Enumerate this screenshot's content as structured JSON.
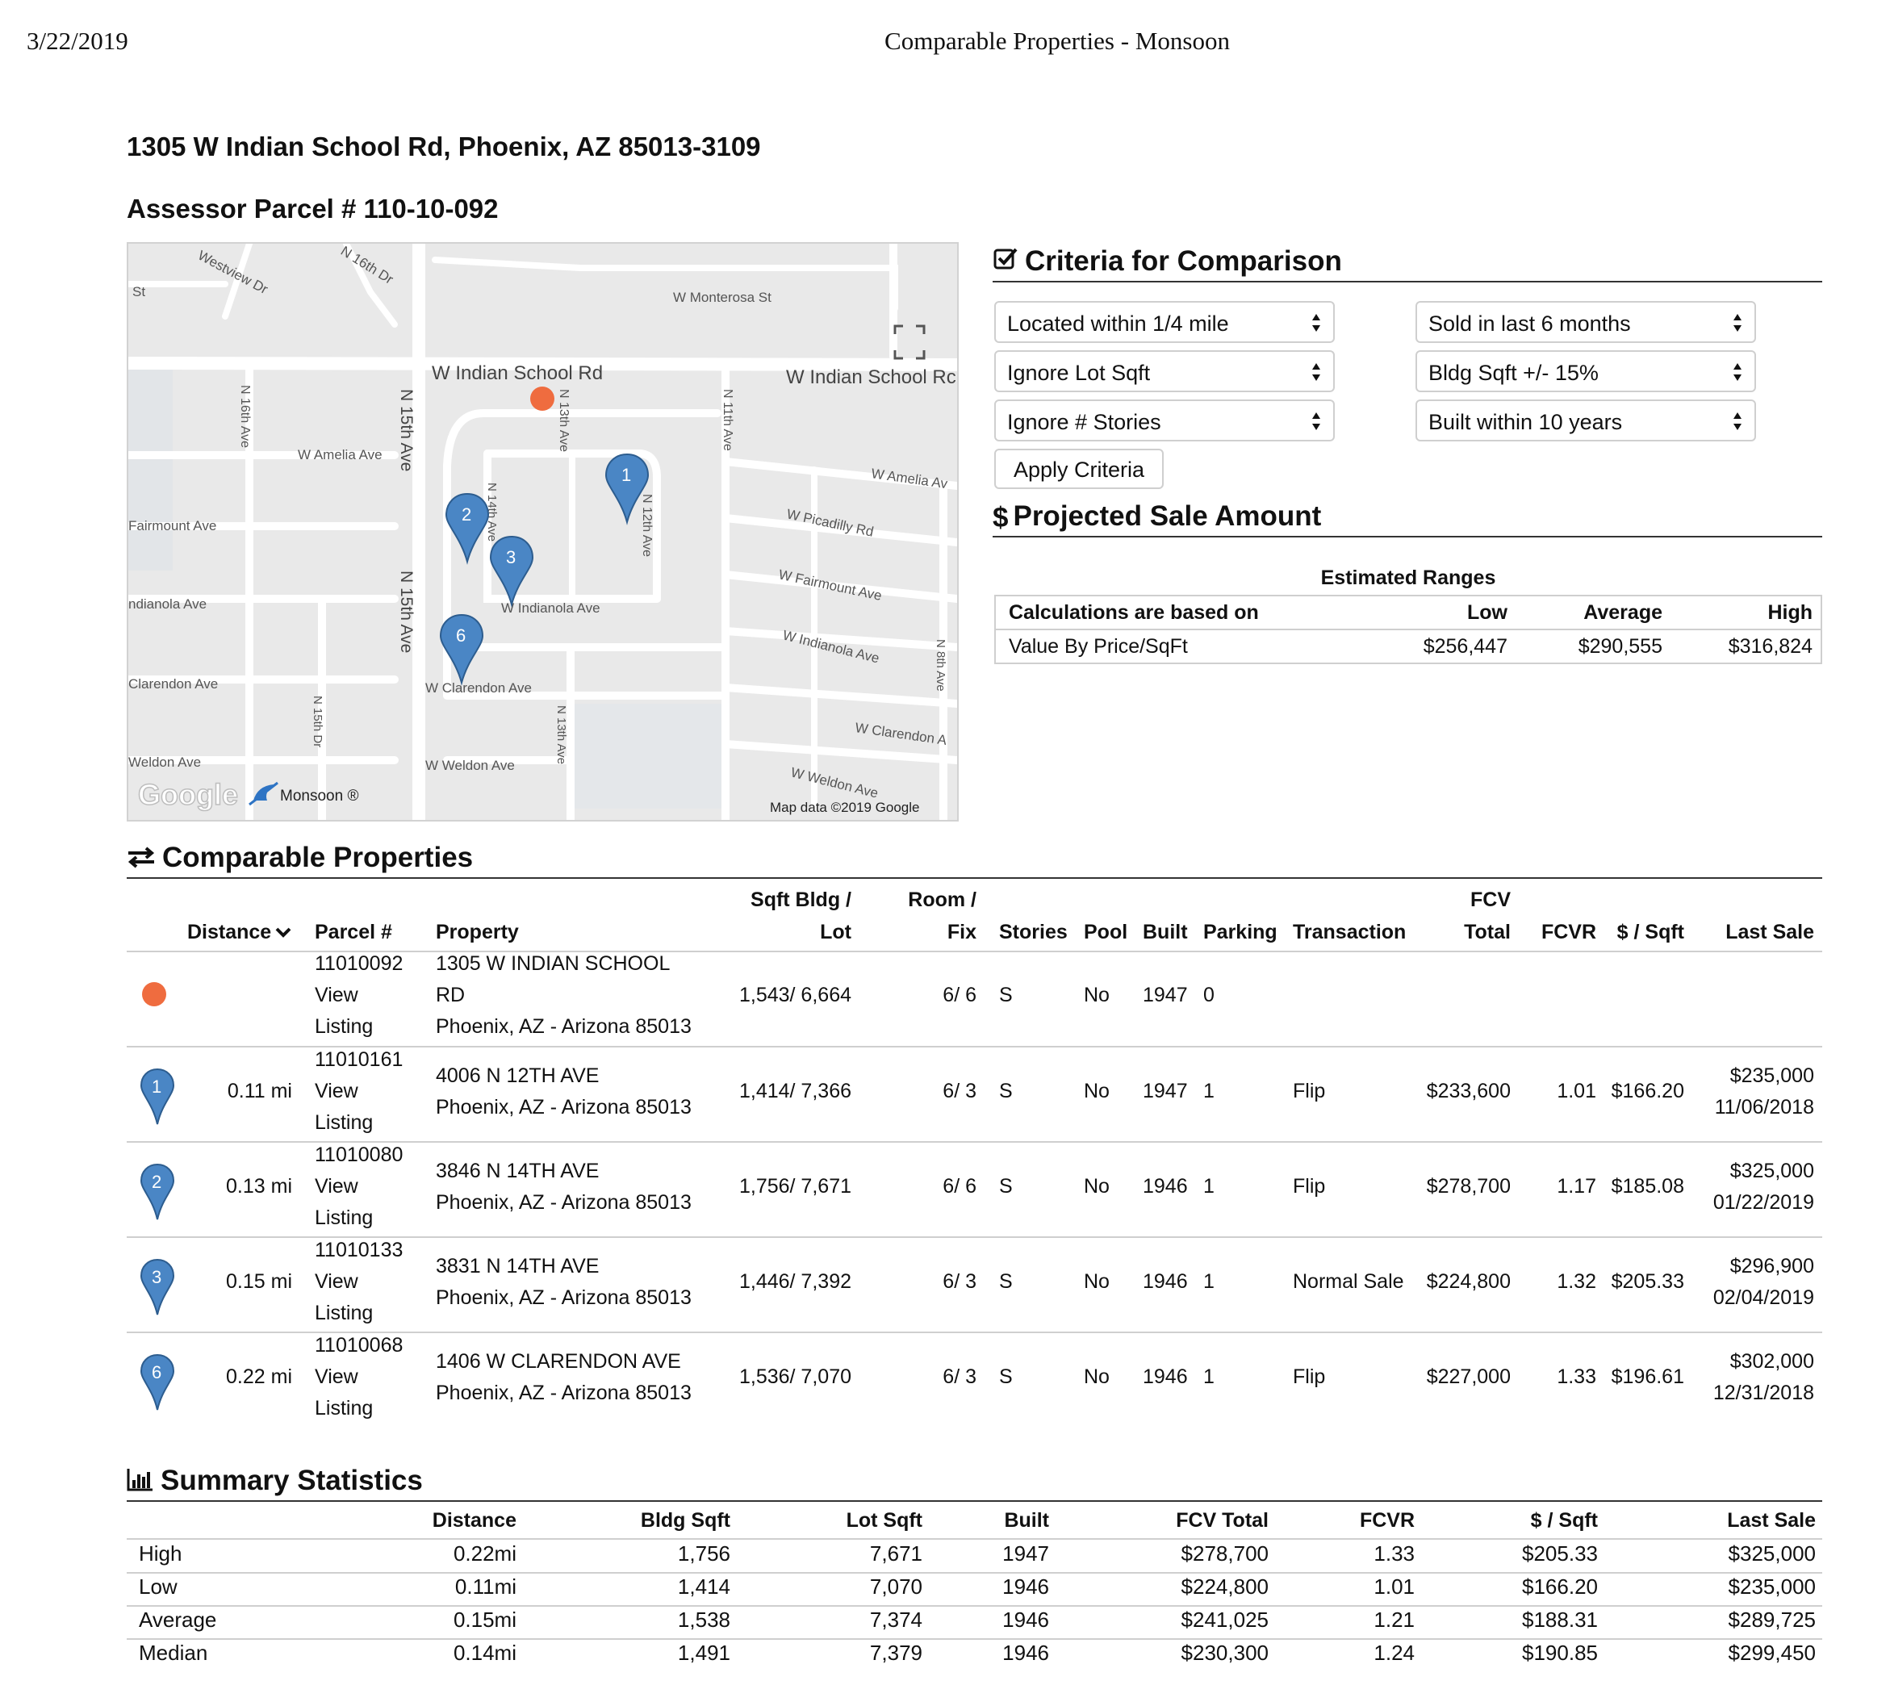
{
  "header": {
    "date": "3/22/2019",
    "title": "Comparable Properties - Monsoon"
  },
  "address": "1305 W Indian School Rd, Phoenix, AZ 85013-3109",
  "parcel_heading": "Assessor Parcel # 110-10-092",
  "map": {
    "labels": {
      "westview": "Westview Dr",
      "st": "St",
      "n16thdr": "N 16th Dr",
      "monterosa": "W Monterosa St",
      "indian_school": "W Indian School Rd",
      "indian_school_r": "W Indian School Rc",
      "n16th": "N 16th Ave",
      "amelia": "W Amelia Ave",
      "n15th": "N 15th Ave",
      "n13th": "N 13th Ave",
      "n11th": "N 11th Ave",
      "amelia_r": "W Amelia Av",
      "fairmount": "Fairmount Ave",
      "n14th": "N 14th Ave",
      "n12th": "N 12th Ave",
      "picadilly": "W Picadilly Rd",
      "fairmount_r": "W Fairmount Ave",
      "indianola_l": "ndianola Ave",
      "indianola": "W Indianola Ave",
      "indianola_r": "W Indianola Ave",
      "n8th": "N 8th Ave",
      "clarendon_l": "Clarendon Ave",
      "clarendon": "W Clarendon Ave",
      "clarendon_r": "W Clarendon A",
      "n15thdr": "N 15th Dr",
      "weldon_l": "Weldon Ave",
      "weldon": "W Weldon Ave",
      "weldon_r": "W Weldon Ave",
      "google": "Google",
      "monsoon": "Monsoon ®",
      "mapdata": "Map data ©2019 Google"
    },
    "pins": [
      "1",
      "2",
      "3",
      "6"
    ]
  },
  "criteria": {
    "heading": "Criteria for Comparison",
    "location": "Located within 1/4 mile",
    "sold": "Sold in last 6 months",
    "lot": "Ignore Lot Sqft",
    "bldg": "Bldg Sqft +/- 15%",
    "stories": "Ignore # Stories",
    "built": "Built within 10 years",
    "apply": "Apply Criteria"
  },
  "projection": {
    "heading": "Projected Sale Amount",
    "caption": "Estimated Ranges",
    "col_basis": "Calculations are based on",
    "col_low": "Low",
    "col_avg": "Average",
    "col_high": "High",
    "basis": "Value By Price/SqFt",
    "low": "$256,447",
    "avg": "$290,555",
    "high": "$316,824"
  },
  "comparables": {
    "heading": "Comparable Properties",
    "headers": {
      "distance": "Distance",
      "parcel": "Parcel #",
      "property": "Property",
      "sqft1": "Sqft Bldg /",
      "sqft2": "Lot",
      "room1": "Room /",
      "room2": "Fix",
      "stories": "Stories",
      "pool": "Pool",
      "built": "Built",
      "parking": "Parking",
      "transaction": "Transaction",
      "fcv1": "FCV",
      "fcv2": "Total",
      "fcvr": "FCVR",
      "psf": "$ / Sqft",
      "last": "Last Sale"
    },
    "subject": {
      "parcel": "11010092",
      "view": "View",
      "listing": "Listing",
      "addr1": "1305 W INDIAN SCHOOL",
      "addr2": "RD",
      "city": "Phoenix, AZ - Arizona  85013",
      "sqft": "1,543/ 6,664",
      "room": "6/ 6",
      "stories": "S",
      "pool": "No",
      "built": "1947",
      "parking": "0"
    },
    "rows": [
      {
        "pin": "1",
        "distance": "0.11 mi",
        "parcel": "11010161",
        "view": "View",
        "listing": "Listing",
        "addr": "4006 N 12TH AVE",
        "city": "Phoenix, AZ - Arizona  85013",
        "sqft": "1,414/ 7,366",
        "room": "6/ 3",
        "stories": "S",
        "pool": "No",
        "built": "1947",
        "parking": "1",
        "transaction": "Flip",
        "fcv": "$233,600",
        "fcvr": "1.01",
        "psf": "$166.20",
        "price": "$235,000",
        "date": "11/06/2018"
      },
      {
        "pin": "2",
        "distance": "0.13 mi",
        "parcel": "11010080",
        "view": "View",
        "listing": "Listing",
        "addr": "3846 N 14TH AVE",
        "city": "Phoenix, AZ - Arizona  85013",
        "sqft": "1,756/ 7,671",
        "room": "6/ 6",
        "stories": "S",
        "pool": "No",
        "built": "1946",
        "parking": "1",
        "transaction": "Flip",
        "fcv": "$278,700",
        "fcvr": "1.17",
        "psf": "$185.08",
        "price": "$325,000",
        "date": "01/22/2019"
      },
      {
        "pin": "3",
        "distance": "0.15 mi",
        "parcel": "11010133",
        "view": "View",
        "listing": "Listing",
        "addr": "3831 N 14TH AVE",
        "city": "Phoenix, AZ - Arizona  85013",
        "sqft": "1,446/ 7,392",
        "room": "6/ 3",
        "stories": "S",
        "pool": "No",
        "built": "1946",
        "parking": "1",
        "transaction": "Normal Sale",
        "fcv": "$224,800",
        "fcvr": "1.32",
        "psf": "$205.33",
        "price": "$296,900",
        "date": "02/04/2019"
      },
      {
        "pin": "6",
        "distance": "0.22 mi",
        "parcel": "11010068",
        "view": "View",
        "listing": "Listing",
        "addr": "1406 W CLARENDON AVE",
        "city": "Phoenix, AZ - Arizona  85013",
        "sqft": "1,536/ 7,070",
        "room": "6/ 3",
        "stories": "S",
        "pool": "No",
        "built": "1946",
        "parking": "1",
        "transaction": "Flip",
        "fcv": "$227,000",
        "fcvr": "1.33",
        "psf": "$196.61",
        "price": "$302,000",
        "date": "12/31/2018"
      }
    ]
  },
  "summary": {
    "heading": "Summary Statistics",
    "headers": [
      "Distance",
      "Bldg Sqft",
      "Lot Sqft",
      "Built",
      "FCV Total",
      "FCVR",
      "$ / Sqft",
      "Last Sale"
    ],
    "rows": [
      {
        "label": "High",
        "cells": [
          "0.22mi",
          "1,756",
          "7,671",
          "1947",
          "$278,700",
          "1.33",
          "$205.33",
          "$325,000"
        ]
      },
      {
        "label": "Low",
        "cells": [
          "0.11mi",
          "1,414",
          "7,070",
          "1946",
          "$224,800",
          "1.01",
          "$166.20",
          "$235,000"
        ]
      },
      {
        "label": "Average",
        "cells": [
          "0.15mi",
          "1,538",
          "7,374",
          "1946",
          "$241,025",
          "1.21",
          "$188.31",
          "$289,725"
        ]
      },
      {
        "label": "Median",
        "cells": [
          "0.14mi",
          "1,491",
          "7,379",
          "1946",
          "$230,300",
          "1.24",
          "$190.85",
          "$299,450"
        ]
      }
    ]
  },
  "colors": {
    "subject_dot": "#ef6c3f",
    "pin": "#4a86c5",
    "pin_dark": "#2d5d8f"
  }
}
